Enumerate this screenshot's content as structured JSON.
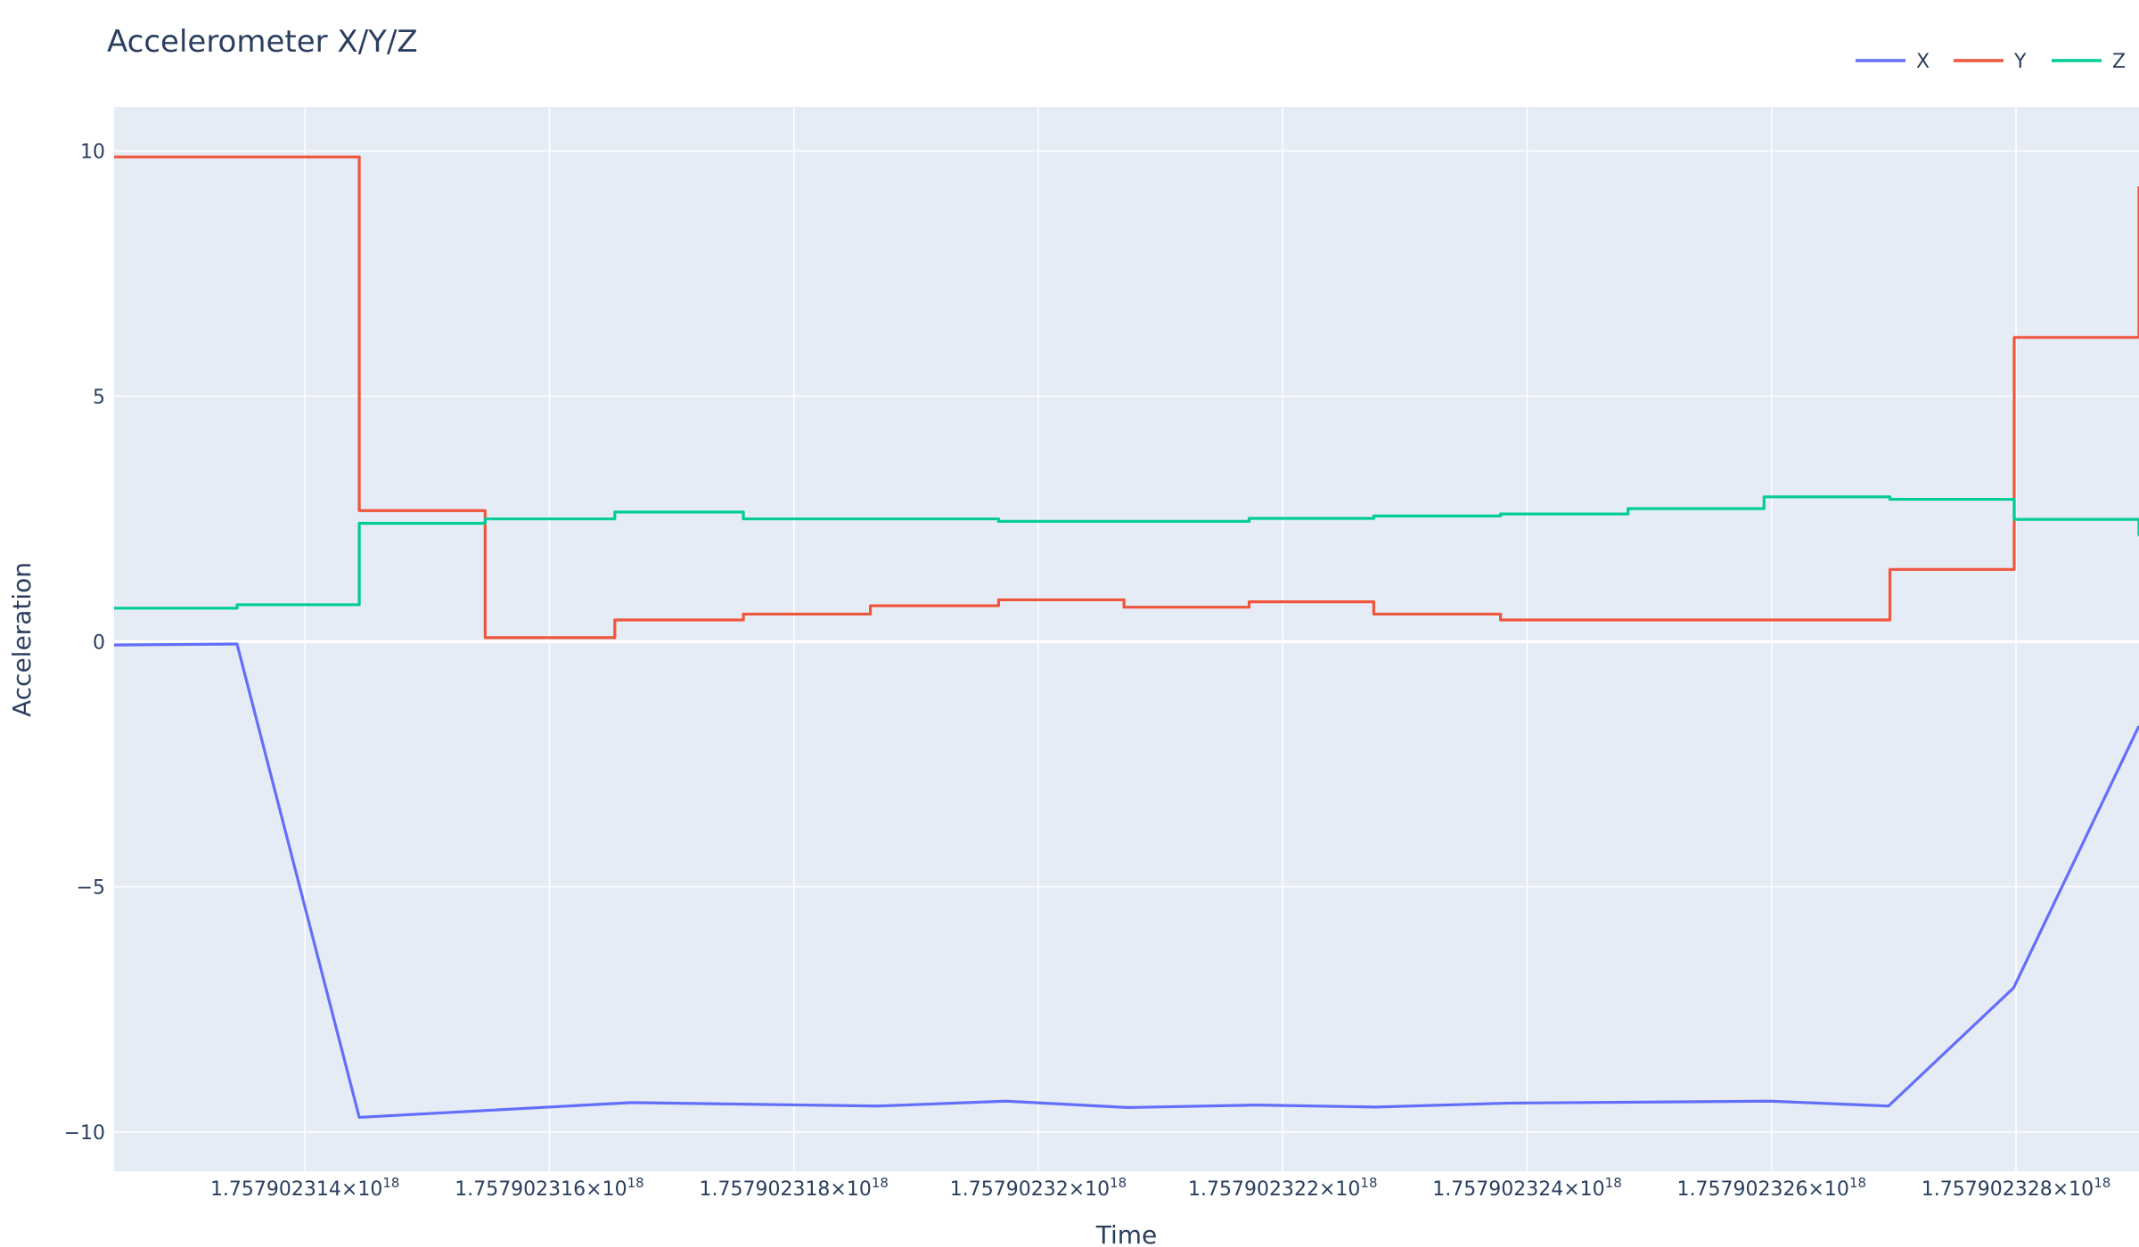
{
  "chart_data": {
    "type": "line",
    "title": "Accelerometer X/Y/Z",
    "xlabel": "Time",
    "ylabel": "Acceleration",
    "xlim": [
      1.757902312438e+18,
      1.757902329006e+18
    ],
    "ylim": [
      -10.8,
      10.9
    ],
    "grid": true,
    "legend": "top-right",
    "x_ticks": [
      {
        "value": 1.757902314e+18,
        "mantissa": "1.757902314×10",
        "exp": "18"
      },
      {
        "value": 1.757902316e+18,
        "mantissa": "1.757902316×10",
        "exp": "18"
      },
      {
        "value": 1.757902318e+18,
        "mantissa": "1.757902318×10",
        "exp": "18"
      },
      {
        "value": 1.75790232e+18,
        "mantissa": "1.75790232×10",
        "exp": "18"
      },
      {
        "value": 1.757902322e+18,
        "mantissa": "1.757902322×10",
        "exp": "18"
      },
      {
        "value": 1.757902324e+18,
        "mantissa": "1.757902324×10",
        "exp": "18"
      },
      {
        "value": 1.757902326e+18,
        "mantissa": "1.757902326×10",
        "exp": "18"
      },
      {
        "value": 1.757902328e+18,
        "mantissa": "1.757902328×10",
        "exp": "18"
      }
    ],
    "y_ticks": [
      {
        "value": 10,
        "label": "10"
      },
      {
        "value": 5,
        "label": "5"
      },
      {
        "value": 0,
        "label": "0"
      },
      {
        "value": -5,
        "label": "−5"
      },
      {
        "value": -10,
        "label": "−10"
      }
    ],
    "series": [
      {
        "name": "X",
        "color": "#636efa",
        "shape": "linear",
        "x": [
          1.757902312438e+18,
          1.757902313444e+18,
          1.757902314444e+18,
          1.757902316671e+18,
          1.757902318691e+18,
          1.757902319735e+18,
          1.757902320728e+18,
          1.757902321785e+18,
          1.757902322763e+18,
          1.757902323852e+18,
          1.757902325987e+18,
          1.757902326956e+18,
          1.75790232798e+18,
          1.757902329006e+18
        ],
        "y": [
          -0.07,
          -0.05,
          -9.7,
          -9.4,
          -9.47,
          -9.37,
          -9.5,
          -9.45,
          -9.49,
          -9.41,
          -9.37,
          -9.47,
          -7.06,
          -1.72
        ]
      },
      {
        "name": "Y",
        "color": "#ef553b",
        "shape": "hv",
        "x": [
          1.757902312438e+18,
          1.757902314444e+18,
          1.757902315474e+18,
          1.757902316535e+18,
          1.757902317587e+18,
          1.757902318626e+18,
          1.757902319675e+18,
          1.757902320701e+18,
          1.757902321725e+18,
          1.757902322745e+18,
          1.757902323782e+18,
          1.757902325987e+18,
          1.757902326968e+18,
          1.757902327985e+18,
          1.757902329006e+18
        ],
        "y": [
          9.88,
          2.67,
          0.08,
          0.44,
          0.56,
          0.73,
          0.85,
          0.7,
          0.81,
          0.56,
          0.44,
          0.44,
          1.47,
          6.2,
          9.28
        ]
      },
      {
        "name": "Z",
        "color": "#00cc96",
        "shape": "hv",
        "x": [
          1.757902312438e+18,
          1.757902313444e+18,
          1.757902314444e+18,
          1.757902315474e+18,
          1.757902316535e+18,
          1.757902317587e+18,
          1.757902319675e+18,
          1.757902321725e+18,
          1.757902322745e+18,
          1.757902323782e+18,
          1.757902324825e+18,
          1.757902325938e+18,
          1.757902326968e+18,
          1.757902327985e+18,
          1.757902329006e+18
        ],
        "y": [
          0.68,
          0.75,
          2.41,
          2.5,
          2.64,
          2.5,
          2.45,
          2.51,
          2.56,
          2.6,
          2.71,
          2.95,
          2.9,
          2.49,
          2.15
        ]
      }
    ]
  }
}
